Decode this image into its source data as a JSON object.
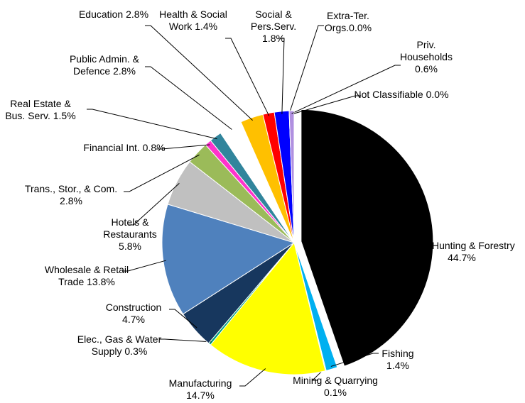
{
  "chart_data": {
    "type": "pie",
    "categories": [
      "Agr., Hunting & Forestry",
      "Fishing",
      "Mining & Quarrying",
      "Manufacturing",
      "Elec., Gas & Water Supply",
      "Construction",
      "Wholesale & Retail Trade",
      "Hotels & Restaurants",
      "Trans., Stor., & Com.",
      "Financial Int.",
      "Real Estate & Bus. Serv.",
      "Public Admin. & Defence",
      "Education",
      "Health & Social Work",
      "Social & Pers.Serv.",
      "Extra-Ter. Orgs.",
      "Priv. Households",
      "Not Classifiable"
    ],
    "values": [
      44.7,
      1.4,
      0.1,
      14.7,
      0.3,
      4.7,
      13.8,
      5.8,
      2.8,
      0.8,
      1.5,
      2.8,
      2.8,
      1.4,
      1.8,
      0.0,
      0.6,
      0.0
    ],
    "value_labels": [
      "44.7%",
      "1.4%",
      "0.1%",
      "14.7%",
      "0.3%",
      "4.7%",
      "13.8%",
      "5.8%",
      "2.8%",
      "0.8%",
      "1.5%",
      "2.8%",
      "2.8%",
      "1.4%",
      "1.8%",
      "0.0%",
      "0.6%",
      "0.0%"
    ],
    "colors": [
      "#000000",
      "#00b0f0",
      "#1f7a5a",
      "#ffff00",
      "#00a080",
      "#17375e",
      "#4f81bd",
      "#c0c0c0",
      "#9bbb59",
      "#ff33cc",
      "#31859c",
      "#ffffff",
      "#ffc000",
      "#ff0000",
      "#0000ff",
      "#7030a0",
      "#b090e0",
      "#ffffff"
    ]
  }
}
